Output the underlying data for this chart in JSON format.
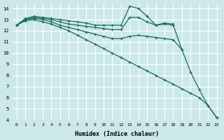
{
  "xlabel": "Humidex (Indice chaleur)",
  "ylabel": "",
  "background_color": "#cce8e8",
  "grid_color": "#ffffff",
  "line_color": "#1a6b5a",
  "xlim": [
    -0.5,
    23.5
  ],
  "ylim": [
    4,
    14.5
  ],
  "yticks": [
    4,
    5,
    6,
    7,
    8,
    9,
    10,
    11,
    12,
    13,
    14
  ],
  "xticks": [
    0,
    1,
    2,
    3,
    4,
    5,
    6,
    7,
    8,
    9,
    10,
    11,
    12,
    13,
    14,
    15,
    16,
    17,
    18,
    19,
    20,
    21,
    22,
    23
  ],
  "series": [
    {
      "x": [
        0,
        1,
        2,
        3,
        4,
        5,
        6,
        7,
        8,
        9,
        10,
        11,
        12,
        13,
        14,
        15,
        16,
        17,
        18,
        19,
        20,
        21,
        22,
        23
      ],
      "y": [
        12.5,
        13.1,
        13.3,
        13.2,
        13.1,
        13.0,
        12.9,
        12.8,
        12.7,
        12.5,
        12.5,
        12.5,
        12.5,
        14.2,
        14.0,
        13.3,
        12.5,
        12.7,
        12.6,
        null,
        null,
        null,
        null,
        null
      ]
    },
    {
      "x": [
        0,
        1,
        2,
        3,
        4,
        5,
        6,
        7,
        8,
        9,
        10,
        11,
        12,
        13,
        14,
        15,
        16,
        17,
        18,
        19,
        20,
        21,
        22,
        23
      ],
      "y": [
        12.5,
        13.0,
        13.2,
        13.1,
        13.0,
        12.8,
        12.6,
        12.5,
        12.4,
        12.3,
        12.2,
        12.1,
        12.1,
        13.2,
        13.2,
        12.8,
        12.5,
        12.6,
        12.5,
        10.3,
        null,
        null,
        null,
        null
      ]
    },
    {
      "x": [
        0,
        1,
        2,
        3,
        4,
        5,
        6,
        7,
        8,
        9,
        10,
        11,
        12,
        13,
        14,
        15,
        16,
        17,
        18,
        19,
        20,
        21,
        22,
        23
      ],
      "y": [
        12.5,
        13.0,
        13.1,
        13.0,
        12.8,
        12.5,
        12.3,
        12.1,
        11.9,
        11.7,
        11.5,
        11.3,
        11.3,
        11.5,
        11.6,
        11.5,
        11.4,
        11.3,
        11.2,
        10.3,
        8.3,
        6.7,
        5.3,
        4.2
      ]
    },
    {
      "x": [
        0,
        1,
        2,
        3,
        4,
        5,
        6,
        7,
        8,
        9,
        10,
        11,
        12,
        13,
        14,
        15,
        16,
        17,
        18,
        19,
        20,
        21,
        22,
        23
      ],
      "y": [
        12.5,
        12.9,
        13.0,
        12.8,
        12.6,
        12.3,
        12.0,
        11.6,
        11.2,
        10.8,
        10.4,
        10.0,
        9.6,
        9.2,
        8.8,
        8.4,
        8.0,
        7.6,
        7.2,
        6.8,
        6.4,
        6.0,
        5.3,
        4.2
      ]
    }
  ]
}
